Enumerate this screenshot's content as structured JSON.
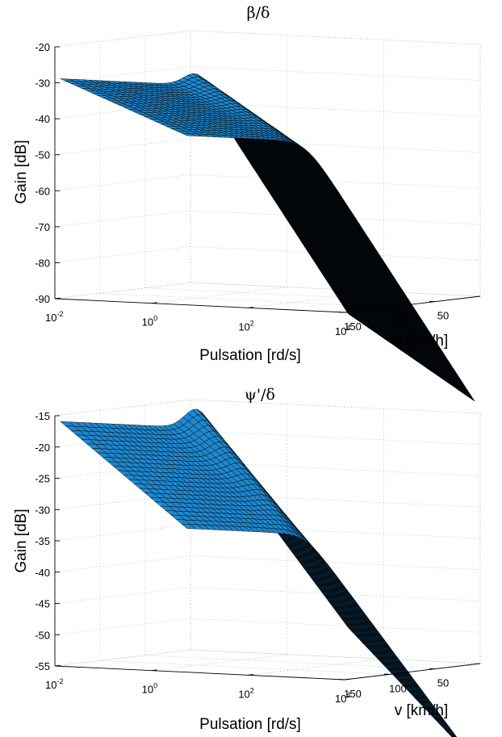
{
  "chart_data": [
    {
      "type": "surface",
      "title": "β/δ",
      "xlabel": "Pulsation [rd/s]",
      "ylabel": "v [km/h]",
      "zlabel": "Gain [dB]",
      "x_scale": "log",
      "xlim": [
        0.01,
        10000
      ],
      "ylim": [
        0,
        150
      ],
      "zlim": [
        -90,
        -20
      ],
      "grid": true,
      "surface_color": "#1e88d0",
      "x_ticks": [
        {
          "base": "10",
          "exp": "-2",
          "value": 0.01
        },
        {
          "base": "10",
          "exp": "0",
          "value": 1
        },
        {
          "base": "10",
          "exp": "2",
          "value": 100
        },
        {
          "base": "10",
          "exp": "4",
          "value": 10000
        }
      ],
      "y_ticks": [
        "50",
        "100",
        "150"
      ],
      "z_ticks": [
        "-20",
        "-30",
        "-40",
        "-50",
        "-60",
        "-70",
        "-80",
        "-90"
      ],
      "model": {
        "low_db_at_v0": -49,
        "low_db_at_vmax": -29,
        "high_slope_db_per_decade": -20,
        "corner_rd_s_at_v0": 3,
        "corner_rd_s_at_vmax": 8,
        "resonance_db_at_vmax": 5,
        "v_range": [
          5,
          145
        ]
      }
    },
    {
      "type": "surface",
      "title": "ψ'/δ",
      "xlabel": "Pulsation [rd/s]",
      "ylabel": "v [km/h]",
      "zlabel": "Gain [dB]",
      "x_scale": "log",
      "xlim": [
        0.01,
        10000
      ],
      "ylim": [
        0,
        150
      ],
      "zlim": [
        -55,
        -15
      ],
      "grid": true,
      "surface_color": "#1e88d0",
      "x_ticks": [
        {
          "base": "10",
          "exp": "-2",
          "value": 0.01
        },
        {
          "base": "10",
          "exp": "0",
          "value": 1
        },
        {
          "base": "10",
          "exp": "2",
          "value": 100
        },
        {
          "base": "10",
          "exp": "4",
          "value": 10000
        }
      ],
      "y_ticks": [
        "50",
        "100",
        "150"
      ],
      "z_ticks": [
        "-15",
        "-20",
        "-25",
        "-30",
        "-35",
        "-40",
        "-45",
        "-50",
        "-55"
      ],
      "model": {
        "low_db_at_v0": -35.5,
        "low_db_at_vmax": -16,
        "high_slope_db_per_decade": -10,
        "corner_rd_s_at_v0": 3,
        "corner_rd_s_at_vmax": 8,
        "resonance_db_at_vmax": 4,
        "v_range": [
          5,
          145
        ]
      }
    }
  ]
}
